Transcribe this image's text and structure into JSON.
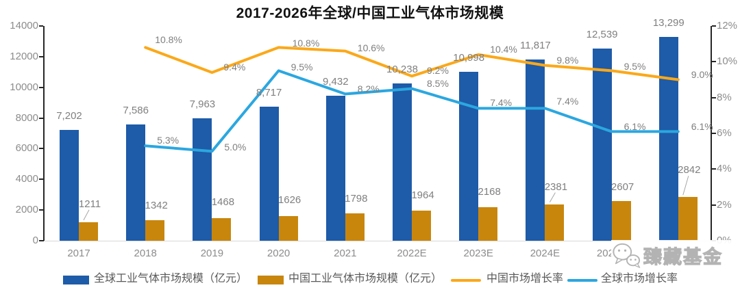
{
  "watermark": {
    "text": "臻藏基金",
    "icon": "wechat-chat-bubbles-icon"
  },
  "chart_data": {
    "type": "bar+line",
    "title": "2017-2026年全球/中国工业气体市场规模",
    "categories": [
      "2017",
      "2018",
      "2019",
      "2020",
      "2021",
      "2022E",
      "2023E",
      "2024E",
      "2025E",
      "2026E"
    ],
    "series": [
      {
        "name": "全球工业气体市场规模（亿元）",
        "type": "bar",
        "axis": "left",
        "color": "#1e5ba8",
        "values": [
          7202,
          7586,
          7963,
          8717,
          9432,
          10238,
          10998,
          11817,
          12539,
          13299
        ],
        "value_labels": [
          "7,202",
          "7,586",
          "7,963",
          "8,717",
          "9,432",
          "10,238",
          "10,998",
          "11,817",
          "12,539",
          "13,299"
        ]
      },
      {
        "name": "中国工业气体市场规模（亿元）",
        "type": "bar",
        "axis": "left",
        "color": "#c8860d",
        "values": [
          1211,
          1342,
          1468,
          1626,
          1798,
          1964,
          2168,
          2381,
          2607,
          2842
        ],
        "value_labels": [
          "1211",
          "1342",
          "1468",
          "1626",
          "1798",
          "1964",
          "2168",
          "2381",
          "2607",
          "2842"
        ]
      },
      {
        "name": "中国市场增长率",
        "type": "line",
        "axis": "right",
        "color": "#fba819",
        "values": [
          null,
          10.8,
          9.4,
          10.8,
          10.6,
          9.2,
          10.4,
          9.8,
          9.5,
          9.0
        ],
        "value_labels": [
          null,
          "10.8%",
          "9.4%",
          "10.8%",
          "10.6%",
          "9.2%",
          "10.4%",
          "9.8%",
          "9.5%",
          "9.0%"
        ]
      },
      {
        "name": "全球市场增长率",
        "type": "line",
        "axis": "right",
        "color": "#2ba7e0",
        "values": [
          null,
          5.3,
          5.0,
          9.5,
          8.2,
          8.5,
          7.4,
          7.4,
          6.1,
          6.1
        ],
        "value_labels": [
          null,
          "5.3%",
          "5.0%",
          "9.5%",
          "8.2%",
          "8.5%",
          "7.4%",
          "7.4%",
          "6.1%",
          "6.1%"
        ]
      }
    ],
    "left_axis": {
      "min": 0,
      "max": 14000,
      "step": 2000,
      "ticks": [
        "0",
        "2000",
        "4000",
        "6000",
        "8000",
        "10000",
        "12000",
        "14000"
      ]
    },
    "right_axis": {
      "min": 0,
      "max": 12,
      "step": 2,
      "ticks": [
        "0%",
        "2%",
        "4%",
        "6%",
        "8%",
        "10%",
        "12%"
      ]
    },
    "legend_position": "bottom",
    "grid": false
  }
}
